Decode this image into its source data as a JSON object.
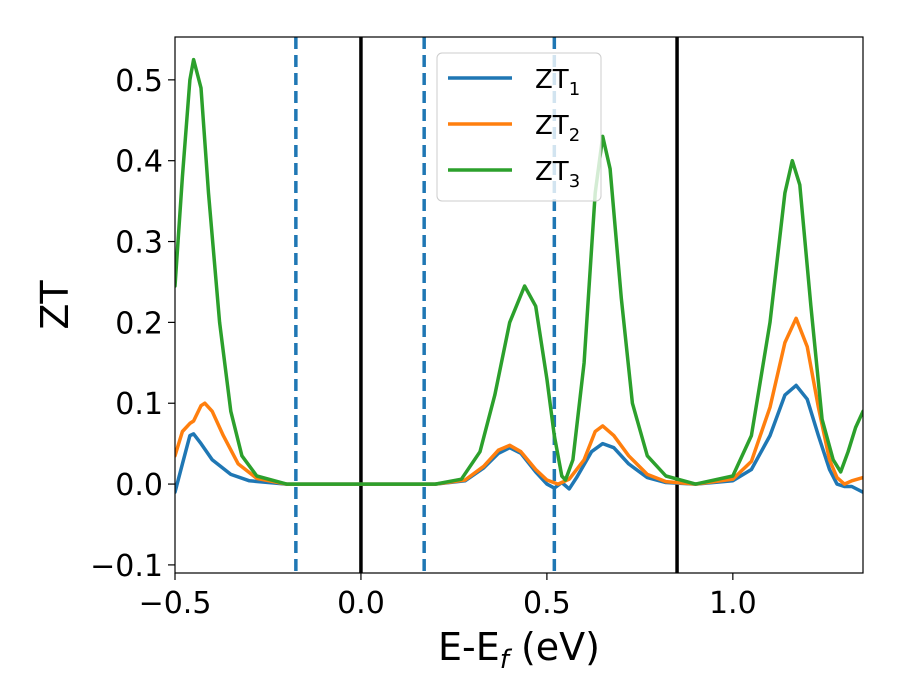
{
  "chart_data": {
    "type": "line",
    "xlabel": {
      "main": "E-E",
      "sub": "f",
      "unit": " (eV)"
    },
    "ylabel": "ZT",
    "xlim": [
      -0.5,
      1.35
    ],
    "ylim": [
      -0.11,
      0.553
    ],
    "xticks": [
      -0.5,
      0.0,
      0.5,
      1.0
    ],
    "xtick_labels": [
      "−0.5",
      "0.0",
      "0.5",
      "1.0"
    ],
    "yticks": [
      -0.1,
      0.0,
      0.1,
      0.2,
      0.3,
      0.4,
      0.5
    ],
    "ytick_labels": [
      "−0.1",
      "0.0",
      "0.1",
      "0.2",
      "0.3",
      "0.4",
      "0.5"
    ],
    "grid": false,
    "legend_position": "top-center",
    "vlines": [
      {
        "x": -0.175,
        "style": "dashed",
        "color": "#1f77b4"
      },
      {
        "x": 0.0,
        "style": "solid",
        "color": "#000000"
      },
      {
        "x": 0.17,
        "style": "dashed",
        "color": "#1f77b4"
      },
      {
        "x": 0.52,
        "style": "dashed",
        "color": "#1f77b4"
      },
      {
        "x": 0.85,
        "style": "solid",
        "color": "#000000"
      }
    ],
    "series": [
      {
        "name": "ZT",
        "sub": "1",
        "color": "#1f77b4",
        "points": [
          [
            -0.5,
            -0.01
          ],
          [
            -0.48,
            0.025
          ],
          [
            -0.46,
            0.06
          ],
          [
            -0.45,
            0.062
          ],
          [
            -0.43,
            0.05
          ],
          [
            -0.4,
            0.03
          ],
          [
            -0.35,
            0.012
          ],
          [
            -0.3,
            0.004
          ],
          [
            -0.2,
            0.0
          ],
          [
            0.0,
            0.0
          ],
          [
            0.2,
            0.0
          ],
          [
            0.28,
            0.004
          ],
          [
            0.33,
            0.02
          ],
          [
            0.37,
            0.038
          ],
          [
            0.4,
            0.045
          ],
          [
            0.43,
            0.038
          ],
          [
            0.47,
            0.015
          ],
          [
            0.5,
            0.0
          ],
          [
            0.52,
            -0.005
          ],
          [
            0.54,
            0.002
          ],
          [
            0.56,
            -0.006
          ],
          [
            0.58,
            0.008
          ],
          [
            0.62,
            0.04
          ],
          [
            0.65,
            0.05
          ],
          [
            0.68,
            0.045
          ],
          [
            0.72,
            0.025
          ],
          [
            0.77,
            0.008
          ],
          [
            0.82,
            0.002
          ],
          [
            0.9,
            0.0
          ],
          [
            1.0,
            0.004
          ],
          [
            1.05,
            0.018
          ],
          [
            1.1,
            0.06
          ],
          [
            1.14,
            0.11
          ],
          [
            1.17,
            0.122
          ],
          [
            1.2,
            0.105
          ],
          [
            1.23,
            0.06
          ],
          [
            1.26,
            0.018
          ],
          [
            1.28,
            0.0
          ],
          [
            1.3,
            -0.003
          ],
          [
            1.32,
            -0.003
          ],
          [
            1.35,
            -0.01
          ]
        ]
      },
      {
        "name": "ZT",
        "sub": "2",
        "color": "#ff7f0e",
        "points": [
          [
            -0.5,
            0.035
          ],
          [
            -0.48,
            0.065
          ],
          [
            -0.46,
            0.075
          ],
          [
            -0.45,
            0.078
          ],
          [
            -0.43,
            0.097
          ],
          [
            -0.42,
            0.1
          ],
          [
            -0.4,
            0.09
          ],
          [
            -0.37,
            0.06
          ],
          [
            -0.33,
            0.025
          ],
          [
            -0.28,
            0.007
          ],
          [
            -0.2,
            0.0
          ],
          [
            0.0,
            0.0
          ],
          [
            0.2,
            0.0
          ],
          [
            0.28,
            0.005
          ],
          [
            0.33,
            0.022
          ],
          [
            0.37,
            0.042
          ],
          [
            0.4,
            0.048
          ],
          [
            0.43,
            0.04
          ],
          [
            0.47,
            0.018
          ],
          [
            0.5,
            0.005
          ],
          [
            0.53,
            0.0
          ],
          [
            0.56,
            0.006
          ],
          [
            0.6,
            0.03
          ],
          [
            0.63,
            0.065
          ],
          [
            0.65,
            0.072
          ],
          [
            0.68,
            0.06
          ],
          [
            0.72,
            0.035
          ],
          [
            0.77,
            0.012
          ],
          [
            0.82,
            0.003
          ],
          [
            0.9,
            0.0
          ],
          [
            1.0,
            0.006
          ],
          [
            1.05,
            0.028
          ],
          [
            1.1,
            0.095
          ],
          [
            1.14,
            0.175
          ],
          [
            1.17,
            0.205
          ],
          [
            1.2,
            0.17
          ],
          [
            1.23,
            0.095
          ],
          [
            1.26,
            0.03
          ],
          [
            1.28,
            0.008
          ],
          [
            1.3,
            0.0
          ],
          [
            1.32,
            0.004
          ],
          [
            1.35,
            0.008
          ]
        ]
      },
      {
        "name": "ZT",
        "sub": "3",
        "color": "#2ca02c",
        "points": [
          [
            -0.5,
            0.245
          ],
          [
            -0.48,
            0.38
          ],
          [
            -0.46,
            0.5
          ],
          [
            -0.45,
            0.525
          ],
          [
            -0.43,
            0.49
          ],
          [
            -0.41,
            0.36
          ],
          [
            -0.38,
            0.2
          ],
          [
            -0.35,
            0.09
          ],
          [
            -0.32,
            0.035
          ],
          [
            -0.28,
            0.01
          ],
          [
            -0.2,
            0.0
          ],
          [
            0.0,
            0.0
          ],
          [
            0.2,
            0.0
          ],
          [
            0.27,
            0.006
          ],
          [
            0.32,
            0.04
          ],
          [
            0.36,
            0.11
          ],
          [
            0.4,
            0.2
          ],
          [
            0.44,
            0.245
          ],
          [
            0.47,
            0.22
          ],
          [
            0.5,
            0.13
          ],
          [
            0.52,
            0.06
          ],
          [
            0.54,
            0.01
          ],
          [
            0.55,
            0.005
          ],
          [
            0.57,
            0.03
          ],
          [
            0.6,
            0.15
          ],
          [
            0.63,
            0.36
          ],
          [
            0.65,
            0.43
          ],
          [
            0.67,
            0.39
          ],
          [
            0.7,
            0.23
          ],
          [
            0.73,
            0.1
          ],
          [
            0.77,
            0.035
          ],
          [
            0.82,
            0.01
          ],
          [
            0.9,
            0.0
          ],
          [
            1.0,
            0.01
          ],
          [
            1.05,
            0.06
          ],
          [
            1.1,
            0.2
          ],
          [
            1.14,
            0.36
          ],
          [
            1.16,
            0.4
          ],
          [
            1.18,
            0.37
          ],
          [
            1.21,
            0.22
          ],
          [
            1.24,
            0.08
          ],
          [
            1.27,
            0.03
          ],
          [
            1.29,
            0.015
          ],
          [
            1.31,
            0.04
          ],
          [
            1.33,
            0.07
          ],
          [
            1.35,
            0.09
          ]
        ]
      }
    ]
  }
}
